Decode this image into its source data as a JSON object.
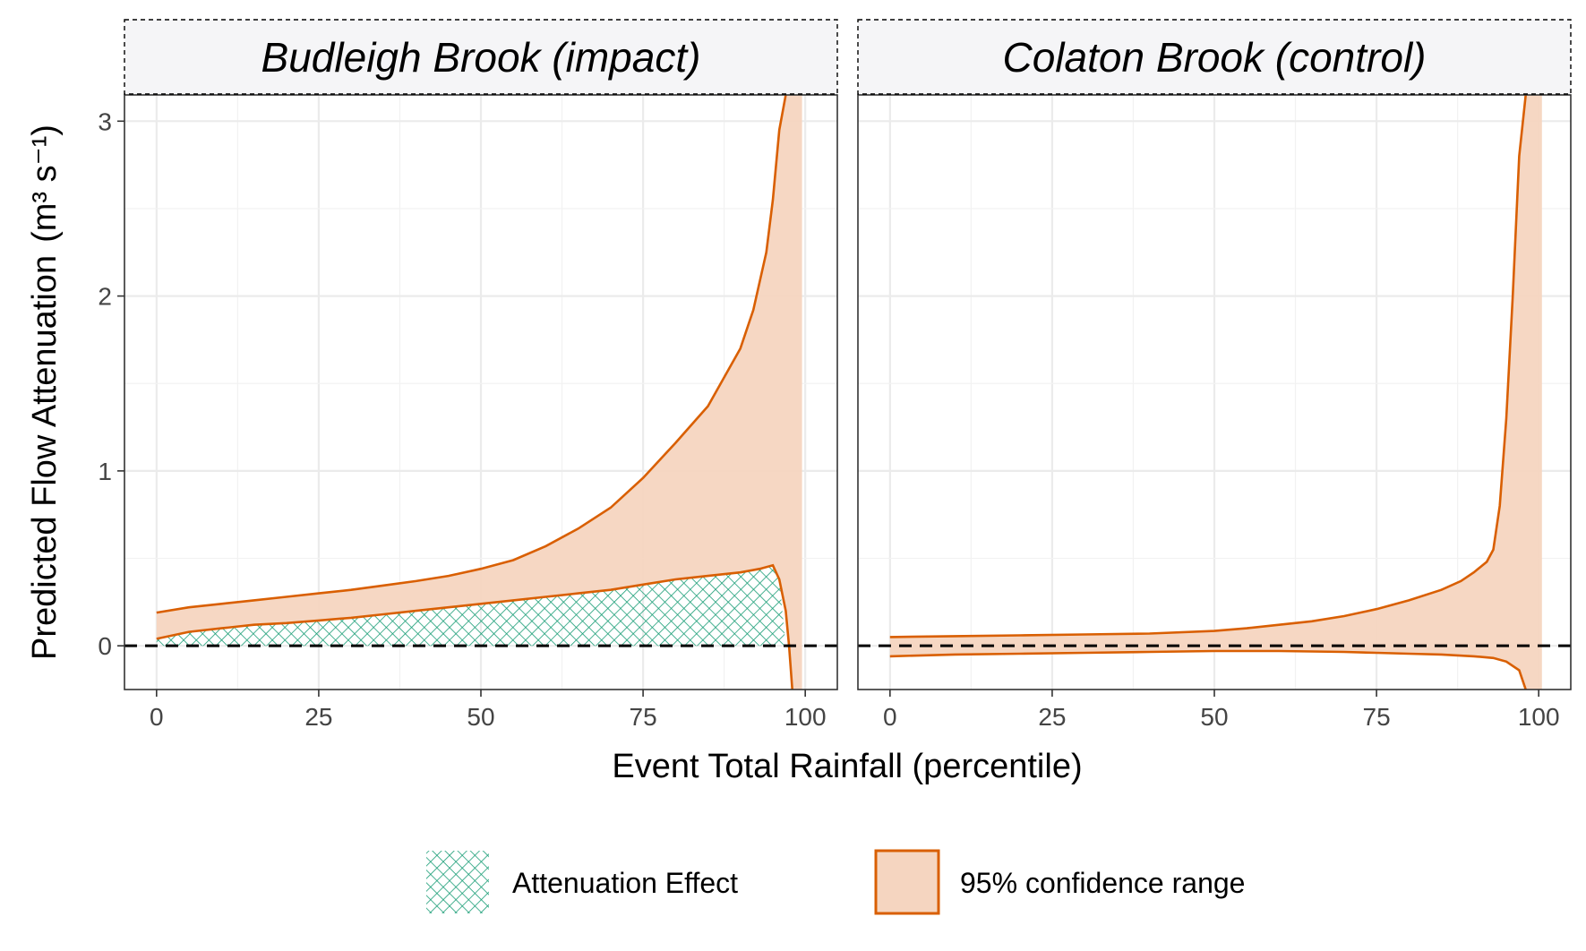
{
  "chart_data": {
    "type": "area",
    "xlabel": "Event Total Rainfall (percentile)",
    "ylabel": "Predicted Flow Attenuation",
    "ylabel_unit": "(m³ s⁻¹)",
    "xlim": [
      0,
      100
    ],
    "ylim": [
      -0.25,
      3.15
    ],
    "x_ticks": [
      0,
      25,
      50,
      75,
      100
    ],
    "y_ticks": [
      0,
      1,
      2,
      3
    ],
    "reference_line": {
      "y": 0,
      "style": "dashed",
      "color": "#000000"
    },
    "grid": true,
    "legend": {
      "position": "bottom",
      "entries": [
        {
          "label": "Attenuation Effect",
          "kind": "hatch",
          "color": "#1b9e77"
        },
        {
          "label": "95% confidence range",
          "kind": "fill",
          "fill": "#f5d5c0",
          "stroke": "#d95f02"
        }
      ]
    },
    "panels": [
      {
        "title": "Budleigh Brook (impact)",
        "ci_upper": {
          "x": [
            0,
            5,
            10,
            15,
            20,
            25,
            30,
            35,
            40,
            45,
            50,
            55,
            60,
            65,
            70,
            75,
            80,
            85,
            90,
            92,
            94,
            95,
            96,
            97
          ],
          "y": [
            0.19,
            0.22,
            0.24,
            0.26,
            0.28,
            0.3,
            0.32,
            0.345,
            0.37,
            0.4,
            0.44,
            0.49,
            0.57,
            0.67,
            0.79,
            0.96,
            1.16,
            1.37,
            1.7,
            1.92,
            2.25,
            2.55,
            2.95,
            3.15
          ]
        },
        "ci_lower": {
          "x": [
            0,
            5,
            10,
            15,
            20,
            25,
            30,
            35,
            40,
            45,
            50,
            55,
            60,
            65,
            70,
            75,
            80,
            85,
            90,
            93,
            95,
            96,
            97,
            97.5,
            98
          ],
          "y": [
            0.04,
            0.08,
            0.1,
            0.12,
            0.13,
            0.145,
            0.16,
            0.18,
            0.2,
            0.22,
            0.24,
            0.26,
            0.28,
            0.3,
            0.32,
            0.35,
            0.38,
            0.4,
            0.42,
            0.44,
            0.46,
            0.38,
            0.2,
            0.0,
            -0.25
          ]
        },
        "attenuation_effect": {
          "x": [
            0,
            5,
            10,
            15,
            20,
            25,
            30,
            35,
            40,
            45,
            50,
            55,
            60,
            65,
            70,
            75,
            80,
            85,
            90,
            93,
            95,
            96,
            97
          ],
          "y": [
            0.04,
            0.08,
            0.1,
            0.12,
            0.13,
            0.145,
            0.16,
            0.18,
            0.2,
            0.22,
            0.24,
            0.26,
            0.28,
            0.3,
            0.32,
            0.35,
            0.38,
            0.4,
            0.42,
            0.44,
            0.46,
            0.38,
            0.0
          ]
        }
      },
      {
        "title": "Colaton Brook (control)",
        "ci_upper": {
          "x": [
            0,
            10,
            20,
            30,
            40,
            50,
            55,
            60,
            65,
            70,
            75,
            80,
            85,
            88,
            90,
            92,
            93,
            94,
            95,
            96,
            97,
            98
          ],
          "y": [
            0.05,
            0.055,
            0.06,
            0.065,
            0.07,
            0.085,
            0.1,
            0.12,
            0.14,
            0.17,
            0.21,
            0.26,
            0.32,
            0.37,
            0.42,
            0.48,
            0.55,
            0.8,
            1.3,
            2.0,
            2.8,
            3.15
          ]
        },
        "ci_lower": {
          "x": [
            0,
            10,
            20,
            30,
            40,
            50,
            60,
            70,
            75,
            80,
            85,
            90,
            93,
            95,
            97,
            98
          ],
          "y": [
            -0.06,
            -0.05,
            -0.045,
            -0.04,
            -0.035,
            -0.03,
            -0.03,
            -0.035,
            -0.04,
            -0.045,
            -0.05,
            -0.06,
            -0.07,
            -0.09,
            -0.14,
            -0.25
          ]
        }
      }
    ]
  }
}
